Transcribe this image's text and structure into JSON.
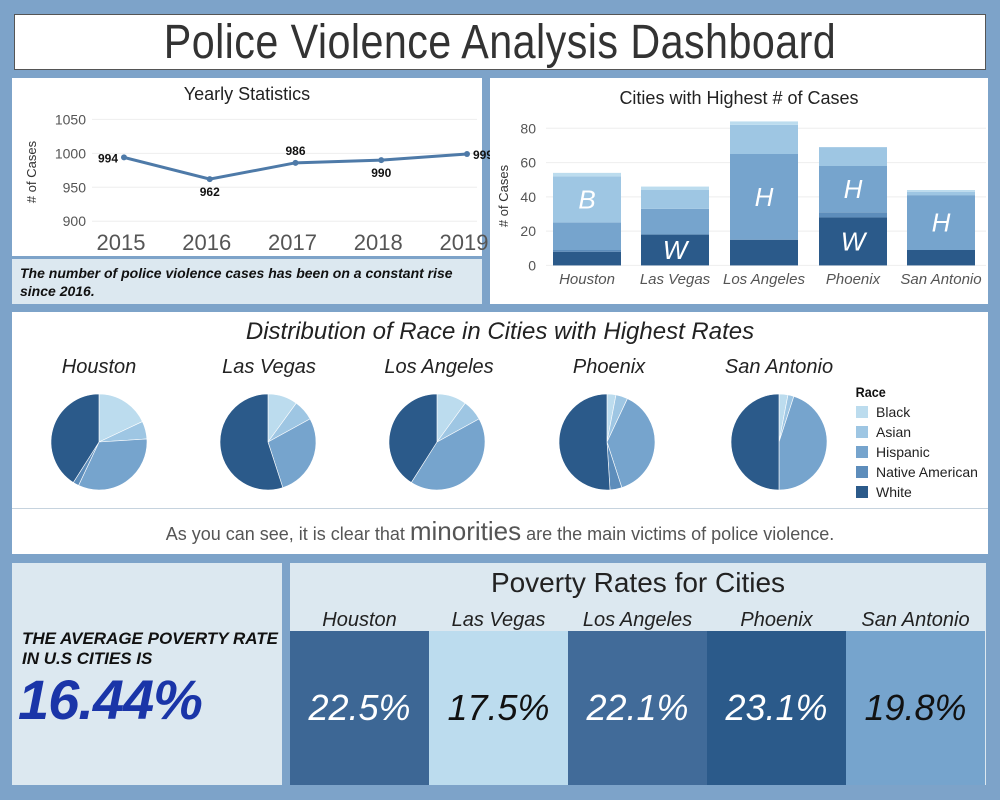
{
  "title": "Police Violence Analysis Dashboard",
  "yearly": {
    "title": "Yearly Statistics",
    "note": "The number of police violence cases has been on a constant rise since 2016."
  },
  "cities_chart": {
    "title": "Cities with Highest # of Cases"
  },
  "race": {
    "title": "Distribution of Race in Cities with Highest Rates",
    "legend_title": "Race",
    "legend": [
      "Black",
      "Asian",
      "Hispanic",
      "Native American",
      "White"
    ],
    "note_before": "As you can see, it is clear that ",
    "note_emph": "minorities",
    "note_after": " are the main victims of police violence."
  },
  "poverty": {
    "avg_label": "THE AVERAGE POVERTY RATE IN U.S CITIES IS",
    "avg_value": "16.44%",
    "title": "Poverty Rates for Cities",
    "cells": [
      {
        "city": "Houston",
        "value": "22.5%"
      },
      {
        "city": "Las Vegas",
        "value": "17.5%"
      },
      {
        "city": "Los Angeles",
        "value": "22.1%"
      },
      {
        "city": "Phoenix",
        "value": "23.1%"
      },
      {
        "city": "San Antonio",
        "value": "19.8%"
      }
    ]
  },
  "colors": {
    "Black": "#bcdcee",
    "Asian": "#9ec6e3",
    "Hispanic": "#76a4cd",
    "Native American": "#5d8dbb",
    "White": "#2b5a8a",
    "line": "#4e7aa8",
    "avg": "#1a35a8"
  },
  "chart_data": [
    {
      "type": "line",
      "title": "Yearly Statistics",
      "xlabel": "",
      "ylabel": "# of Cases",
      "x": [
        "2015",
        "2016",
        "2017",
        "2018",
        "2019"
      ],
      "values": [
        994,
        962,
        986,
        990,
        999
      ],
      "ylim": [
        890,
        1055
      ],
      "yticks": [
        900,
        950,
        1000,
        1050
      ],
      "grid": true
    },
    {
      "type": "bar",
      "stacked": true,
      "title": "Cities with Highest # of Cases",
      "ylabel": "# of Cases",
      "categories": [
        "Houston",
        "Las Vegas",
        "Los Angeles",
        "Phoenix",
        "San Antonio"
      ],
      "ylim": [
        -5,
        86
      ],
      "yticks": [
        0,
        20,
        40,
        60,
        80
      ],
      "series": [
        {
          "name": "White",
          "values": [
            8,
            18,
            15,
            28,
            9
          ]
        },
        {
          "name": "Native American",
          "values": [
            1,
            0,
            0,
            3,
            0
          ]
        },
        {
          "name": "Hispanic",
          "values": [
            16,
            15,
            50,
            27,
            32
          ]
        },
        {
          "name": "Asian",
          "values": [
            27,
            11,
            17,
            11,
            2
          ]
        },
        {
          "name": "Black",
          "values": [
            2,
            2,
            2,
            0,
            1
          ]
        }
      ],
      "bar_labels": [
        {
          "category": "Houston",
          "series": "Asian",
          "text": "B"
        },
        {
          "category": "Las Vegas",
          "series": "White",
          "text": "W"
        },
        {
          "category": "Los Angeles",
          "series": "Hispanic",
          "text": "H"
        },
        {
          "category": "Phoenix",
          "series": "Hispanic",
          "text": "H"
        },
        {
          "category": "Phoenix",
          "series": "White",
          "text": "W"
        },
        {
          "category": "San Antonio",
          "series": "Hispanic",
          "text": "H"
        }
      ]
    },
    {
      "type": "pie",
      "title": "Distribution of Race in Cities with Highest Rates",
      "categories": [
        "Black",
        "Asian",
        "Hispanic",
        "Native American",
        "White"
      ],
      "series": [
        {
          "name": "Houston",
          "values": [
            18,
            6,
            33,
            2,
            41
          ]
        },
        {
          "name": "Las Vegas",
          "values": [
            10,
            7,
            28,
            0,
            55
          ]
        },
        {
          "name": "Los Angeles",
          "values": [
            10,
            7,
            42,
            0,
            41
          ]
        },
        {
          "name": "Phoenix",
          "values": [
            3,
            4,
            38,
            4,
            51
          ]
        },
        {
          "name": "San Antonio",
          "values": [
            3,
            2,
            45,
            0,
            50
          ]
        }
      ]
    },
    {
      "type": "table",
      "title": "Poverty Rates for Cities",
      "categories": [
        "Houston",
        "Las Vegas",
        "Los Angeles",
        "Phoenix",
        "San Antonio"
      ],
      "values": [
        22.5,
        17.5,
        22.1,
        23.1,
        19.8
      ],
      "avg": 16.44
    }
  ]
}
